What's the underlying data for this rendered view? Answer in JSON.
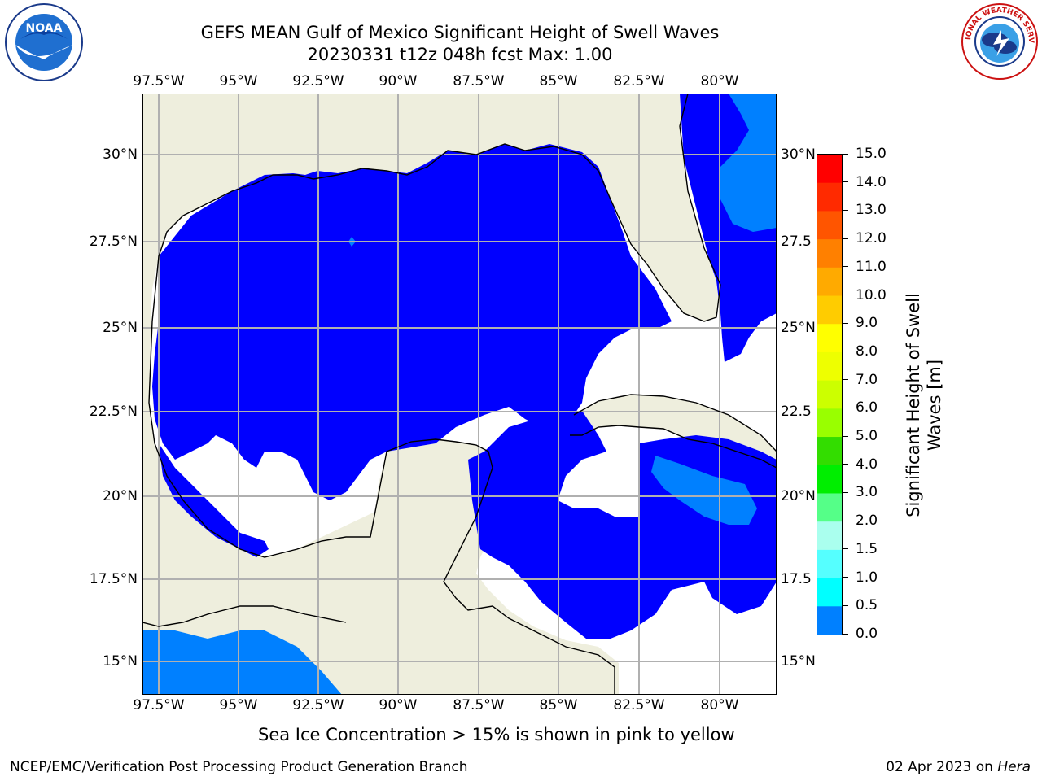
{
  "title": {
    "line1": "GEFS MEAN Gulf of Mexico Significant Height of Swell Waves",
    "line2": "20230331 t12z 048h fcst   Max: 1.00"
  },
  "logos": {
    "left": "noaa-logo",
    "left_text": "NOAA",
    "left_ring_text": "NATIONAL OCEANIC AND ATMOSPHERIC ADMINISTRATION U.S. DEPARTMENT OF COMMERCE",
    "right": "nws-logo",
    "right_ring_text": "NATIONAL WEATHER SERVICE"
  },
  "map": {
    "lon_labels": [
      "97.5°W",
      "95°W",
      "92.5°W",
      "90°W",
      "87.5°W",
      "85°W",
      "82.5°W",
      "80°W"
    ],
    "lat_labels": [
      "30°N",
      "27.5°N",
      "25°N",
      "22.5°N",
      "20°N",
      "17.5°N",
      "15°N"
    ],
    "lat_labels_right": [
      "30°N",
      "27.5",
      "25°N",
      "22.5",
      "20°N",
      "17.5",
      "15°N"
    ],
    "colors": {
      "land": "#eeeedd",
      "ocean_missing": "#ffffff",
      "swell_0_0.5": "#0000ff",
      "swell_0.5_1.0": "#0080ff",
      "grid": "#b0b0b0",
      "coastline": "#000000"
    }
  },
  "colorbar": {
    "label_line1": "Significant Height of Swell",
    "label_line2": "Waves [m]",
    "ticks": [
      "15.0",
      "14.0",
      "13.0",
      "12.0",
      "11.0",
      "10.0",
      "9.0",
      "8.0",
      "7.0",
      "6.0",
      "5.0",
      "4.0",
      "3.0",
      "2.0",
      "1.5",
      "1.0",
      "0.5",
      "0.0"
    ],
    "colors_top_to_bottom": [
      "#ff0000",
      "#ff2a00",
      "#ff5500",
      "#ff8000",
      "#ffaa00",
      "#ffcc00",
      "#ffff00",
      "#eeff00",
      "#ccff00",
      "#99ff00",
      "#33dd00",
      "#00ee00",
      "#55ff88",
      "#aaffee",
      "#55ffff",
      "#00ffff",
      "#0080ff",
      "#0000ff"
    ]
  },
  "note": "Sea Ice Concentration > 15% is shown in pink to yellow",
  "footer": {
    "left": "NCEP/EMC/Verification Post Processing Product Generation Branch",
    "date": "02 Apr 2023 on",
    "host": "Hera"
  }
}
